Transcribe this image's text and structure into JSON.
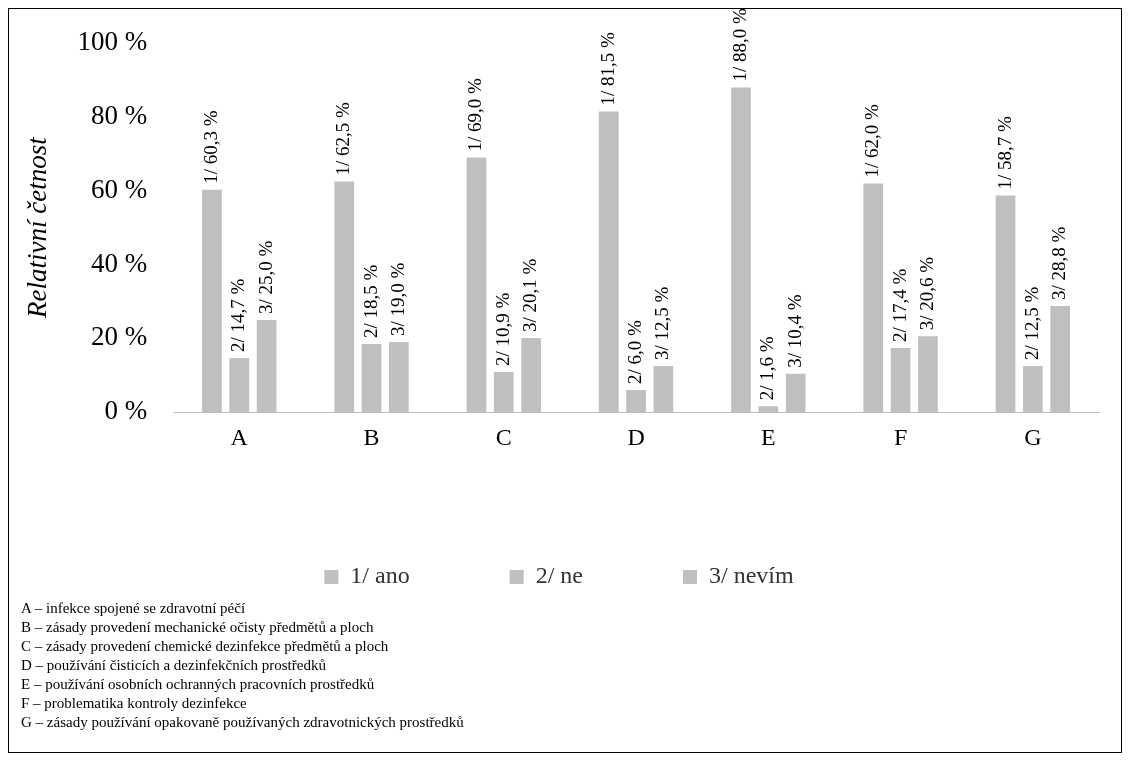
{
  "chart_data": {
    "type": "bar",
    "categories": [
      "A",
      "B",
      "C",
      "D",
      "E",
      "F",
      "G"
    ],
    "series": [
      {
        "name": "1/ ano",
        "color": "#bfbfbf",
        "values": [
          60.3,
          62.5,
          69.0,
          81.5,
          88.0,
          62.0,
          58.7
        ],
        "value_labels": [
          "1/ 60,3 %",
          "1/ 62,5 %",
          "1/ 69,0 %",
          "1/ 81,5 %",
          "1/ 88,0 %",
          "1/ 62,0 %",
          "1/ 58,7 %"
        ]
      },
      {
        "name": "2/ ne",
        "color": "#bfbfbf",
        "values": [
          14.7,
          18.5,
          10.9,
          6.0,
          1.6,
          17.4,
          12.5
        ],
        "value_labels": [
          "2/ 14,7 %",
          "2/ 18,5 %",
          "2/ 10,9 %",
          "2/ 6,0 %",
          "2/ 1,6 %",
          "2/ 17,4 %",
          "2/ 12,5 %"
        ]
      },
      {
        "name": "3/ nevím",
        "color": "#bfbfbf",
        "values": [
          25.0,
          19.0,
          20.1,
          12.5,
          10.4,
          20.6,
          28.8
        ],
        "value_labels": [
          "3/ 25,0 %",
          "3/ 19,0 %",
          "3/ 20,1 %",
          "3/ 12,5 %",
          "3/ 10,4 %",
          "3/ 20,6 %",
          "3/ 28,8 %"
        ]
      }
    ],
    "ylabel": "Relativní četnost",
    "ylim": [
      0,
      100
    ],
    "yticks": [
      {
        "value": 0,
        "label": "0 %"
      },
      {
        "value": 20,
        "label": "20 %"
      },
      {
        "value": 40,
        "label": "40 %"
      },
      {
        "value": 60,
        "label": "60 %"
      },
      {
        "value": 80,
        "label": "80 %"
      },
      {
        "value": 100,
        "label": "100 %"
      }
    ],
    "grid": false,
    "legend": "bottom",
    "annotations": [
      "A – infekce spojené se zdravotní péčí",
      "B – zásady provedení mechanické očisty předmětů a ploch",
      "C – zásady provedení chemické dezinfekce předmětů a ploch",
      "D – používání čisticích a dezinfekčních prostředků",
      "E – používání osobních ochranných pracovních prostředků",
      "F – problematika kontroly dezinfekce",
      "G – zásady používání opakovaně používaných zdravotnických prostředků"
    ]
  }
}
